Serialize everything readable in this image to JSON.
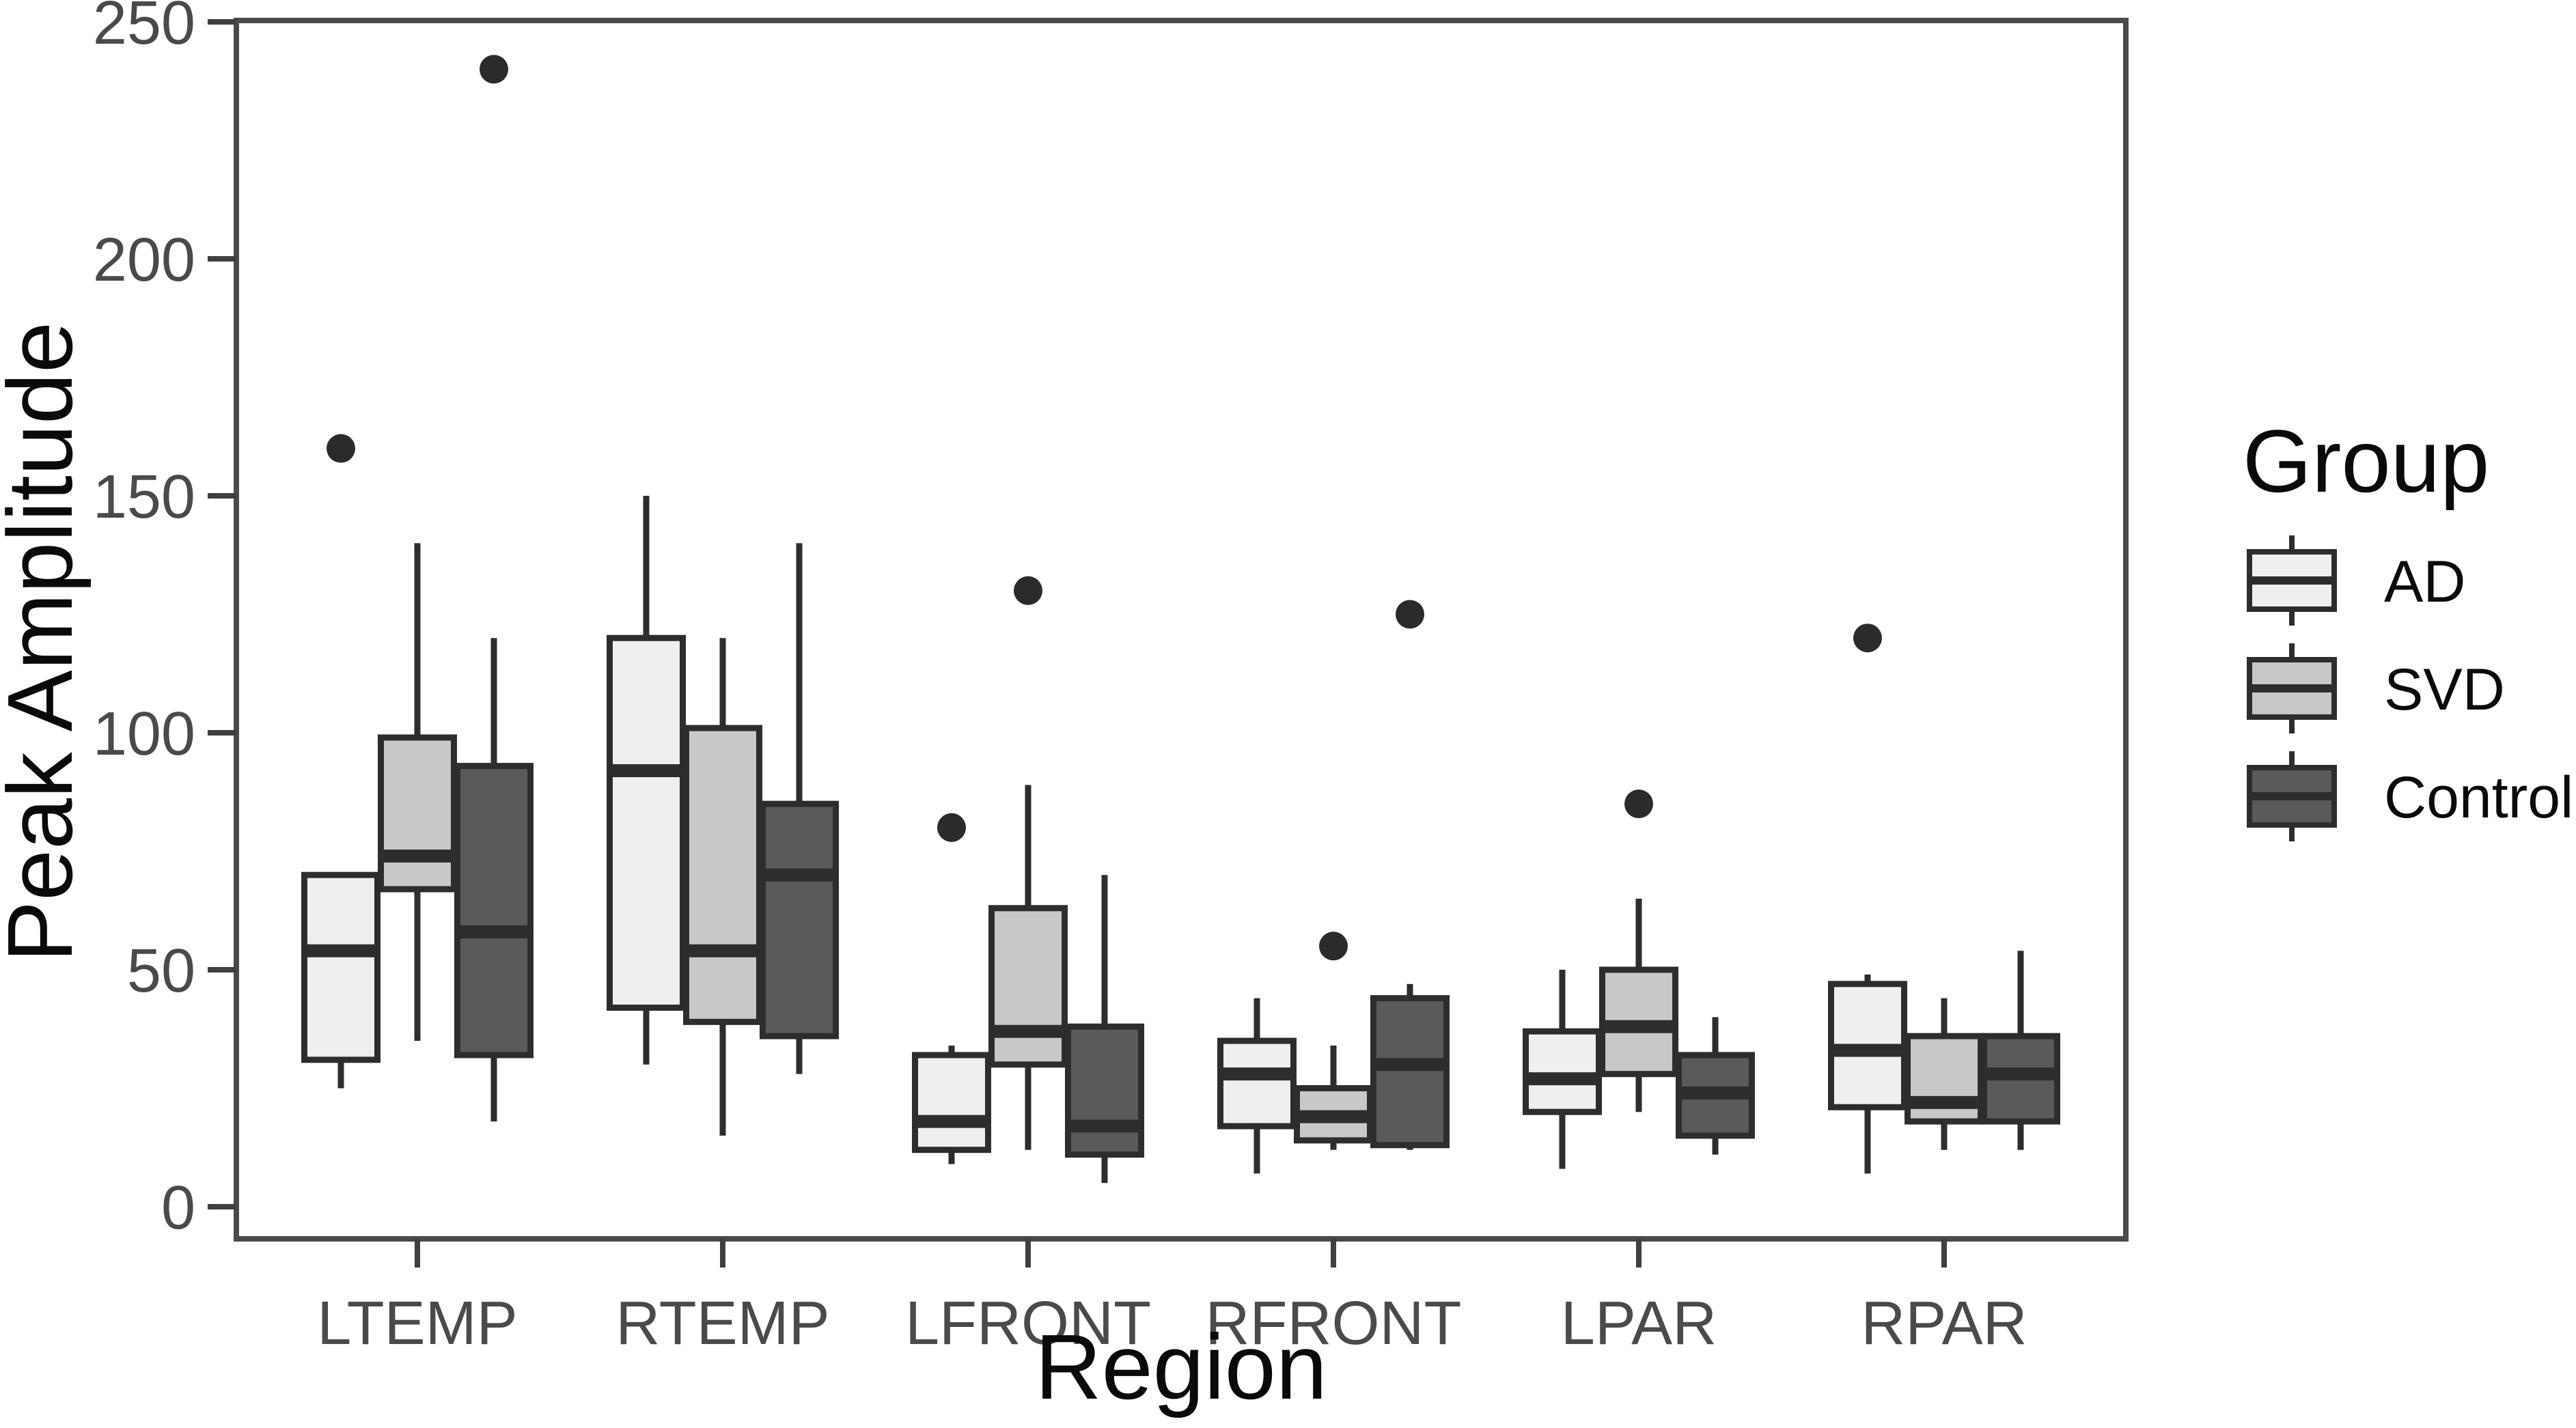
{
  "figure": {
    "background": "#ffffff",
    "y_axis": {
      "title": "Peak Amplitude",
      "ticks": [
        "0",
        "50",
        "100",
        "150",
        "200",
        "250"
      ]
    },
    "x_axis": {
      "title": "Region",
      "categories": [
        "LTEMP",
        "RTEMP",
        "LFRONT",
        "RFRONT",
        "LPAR",
        "RPAR"
      ]
    },
    "legend": {
      "title": "Group",
      "entries": [
        {
          "label": "AD",
          "fill": "#efefef"
        },
        {
          "label": "SVD",
          "mid": true,
          "fill": "#c8c8c8"
        },
        {
          "label": "Control",
          "fill": "#5a5a5a"
        }
      ]
    }
  },
  "colors": {
    "box_border": "#2d2d2d",
    "median": "#2d2d2d",
    "whisker": "#2d2d2d",
    "outlier": "#2b2b2b",
    "panel_border": "#4a4a4a",
    "tick_mark": "#3f3f3f",
    "panel_background": "#ffffff"
  },
  "chart_data": {
    "type": "boxplot",
    "title": "",
    "xlabel": "Region",
    "ylabel": "Peak Amplitude",
    "ylim": [
      0,
      250
    ],
    "yticks": [
      0,
      50,
      100,
      150,
      200,
      250
    ],
    "grid": false,
    "legend_position": "right",
    "categories": [
      "LTEMP",
      "RTEMP",
      "LFRONT",
      "RFRONT",
      "LPAR",
      "RPAR"
    ],
    "groups": [
      "AD",
      "SVD",
      "Control"
    ],
    "series": [
      {
        "name": "AD",
        "fill": "#efefef",
        "boxes": [
          {
            "category": "LTEMP",
            "whisker_low": 25,
            "q1": 31,
            "median": 54,
            "q3": 70,
            "whisker_high": 70,
            "outliers": [
              160
            ]
          },
          {
            "category": "RTEMP",
            "whisker_low": 30,
            "q1": 42,
            "median": 92,
            "q3": 120,
            "whisker_high": 150,
            "outliers": []
          },
          {
            "category": "LFRONT",
            "whisker_low": 9,
            "q1": 12,
            "median": 18,
            "q3": 32,
            "whisker_high": 34,
            "outliers": [
              80
            ]
          },
          {
            "category": "RFRONT",
            "whisker_low": 7,
            "q1": 17,
            "median": 28,
            "q3": 35,
            "whisker_high": 44,
            "outliers": []
          },
          {
            "category": "LPAR",
            "whisker_low": 8,
            "q1": 20,
            "median": 27,
            "q3": 37,
            "whisker_high": 50,
            "outliers": []
          },
          {
            "category": "RPAR",
            "whisker_low": 7,
            "q1": 21,
            "median": 33,
            "q3": 47,
            "whisker_high": 49,
            "outliers": [
              120
            ]
          }
        ]
      },
      {
        "name": "SVD",
        "fill": "#c8c8c8",
        "boxes": [
          {
            "category": "LTEMP",
            "whisker_low": 35,
            "q1": 67,
            "median": 74,
            "q3": 99,
            "whisker_high": 140,
            "outliers": []
          },
          {
            "category": "RTEMP",
            "whisker_low": 15,
            "q1": 39,
            "median": 54,
            "q3": 101,
            "whisker_high": 120,
            "outliers": []
          },
          {
            "category": "LFRONT",
            "whisker_low": 12,
            "q1": 30,
            "median": 37,
            "q3": 63,
            "whisker_high": 89,
            "outliers": [
              130
            ]
          },
          {
            "category": "RFRONT",
            "whisker_low": 12,
            "q1": 14,
            "median": 19,
            "q3": 25,
            "whisker_high": 34,
            "outliers": [
              55
            ]
          },
          {
            "category": "LPAR",
            "whisker_low": 20,
            "q1": 28,
            "median": 38,
            "q3": 50,
            "whisker_high": 65,
            "outliers": [
              85
            ]
          },
          {
            "category": "RPAR",
            "whisker_low": 12,
            "q1": 18,
            "median": 22,
            "q3": 36,
            "whisker_high": 44,
            "outliers": []
          }
        ]
      },
      {
        "name": "Control",
        "fill": "#5a5a5a",
        "boxes": [
          {
            "category": "LTEMP",
            "whisker_low": 18,
            "q1": 32,
            "median": 58,
            "q3": 93,
            "whisker_high": 120,
            "outliers": [
              240
            ]
          },
          {
            "category": "RTEMP",
            "whisker_low": 28,
            "q1": 36,
            "median": 70,
            "q3": 85,
            "whisker_high": 140,
            "outliers": []
          },
          {
            "category": "LFRONT",
            "whisker_low": 5,
            "q1": 11,
            "median": 17,
            "q3": 38,
            "whisker_high": 70,
            "outliers": []
          },
          {
            "category": "RFRONT",
            "whisker_low": 12,
            "q1": 13,
            "median": 30,
            "q3": 44,
            "whisker_high": 47,
            "outliers": [
              125
            ]
          },
          {
            "category": "LPAR",
            "whisker_low": 11,
            "q1": 15,
            "median": 24,
            "q3": 32,
            "whisker_high": 40,
            "outliers": []
          },
          {
            "category": "RPAR",
            "whisker_low": 12,
            "q1": 18,
            "median": 28,
            "q3": 36,
            "whisker_high": 54,
            "outliers": []
          }
        ]
      }
    ]
  }
}
